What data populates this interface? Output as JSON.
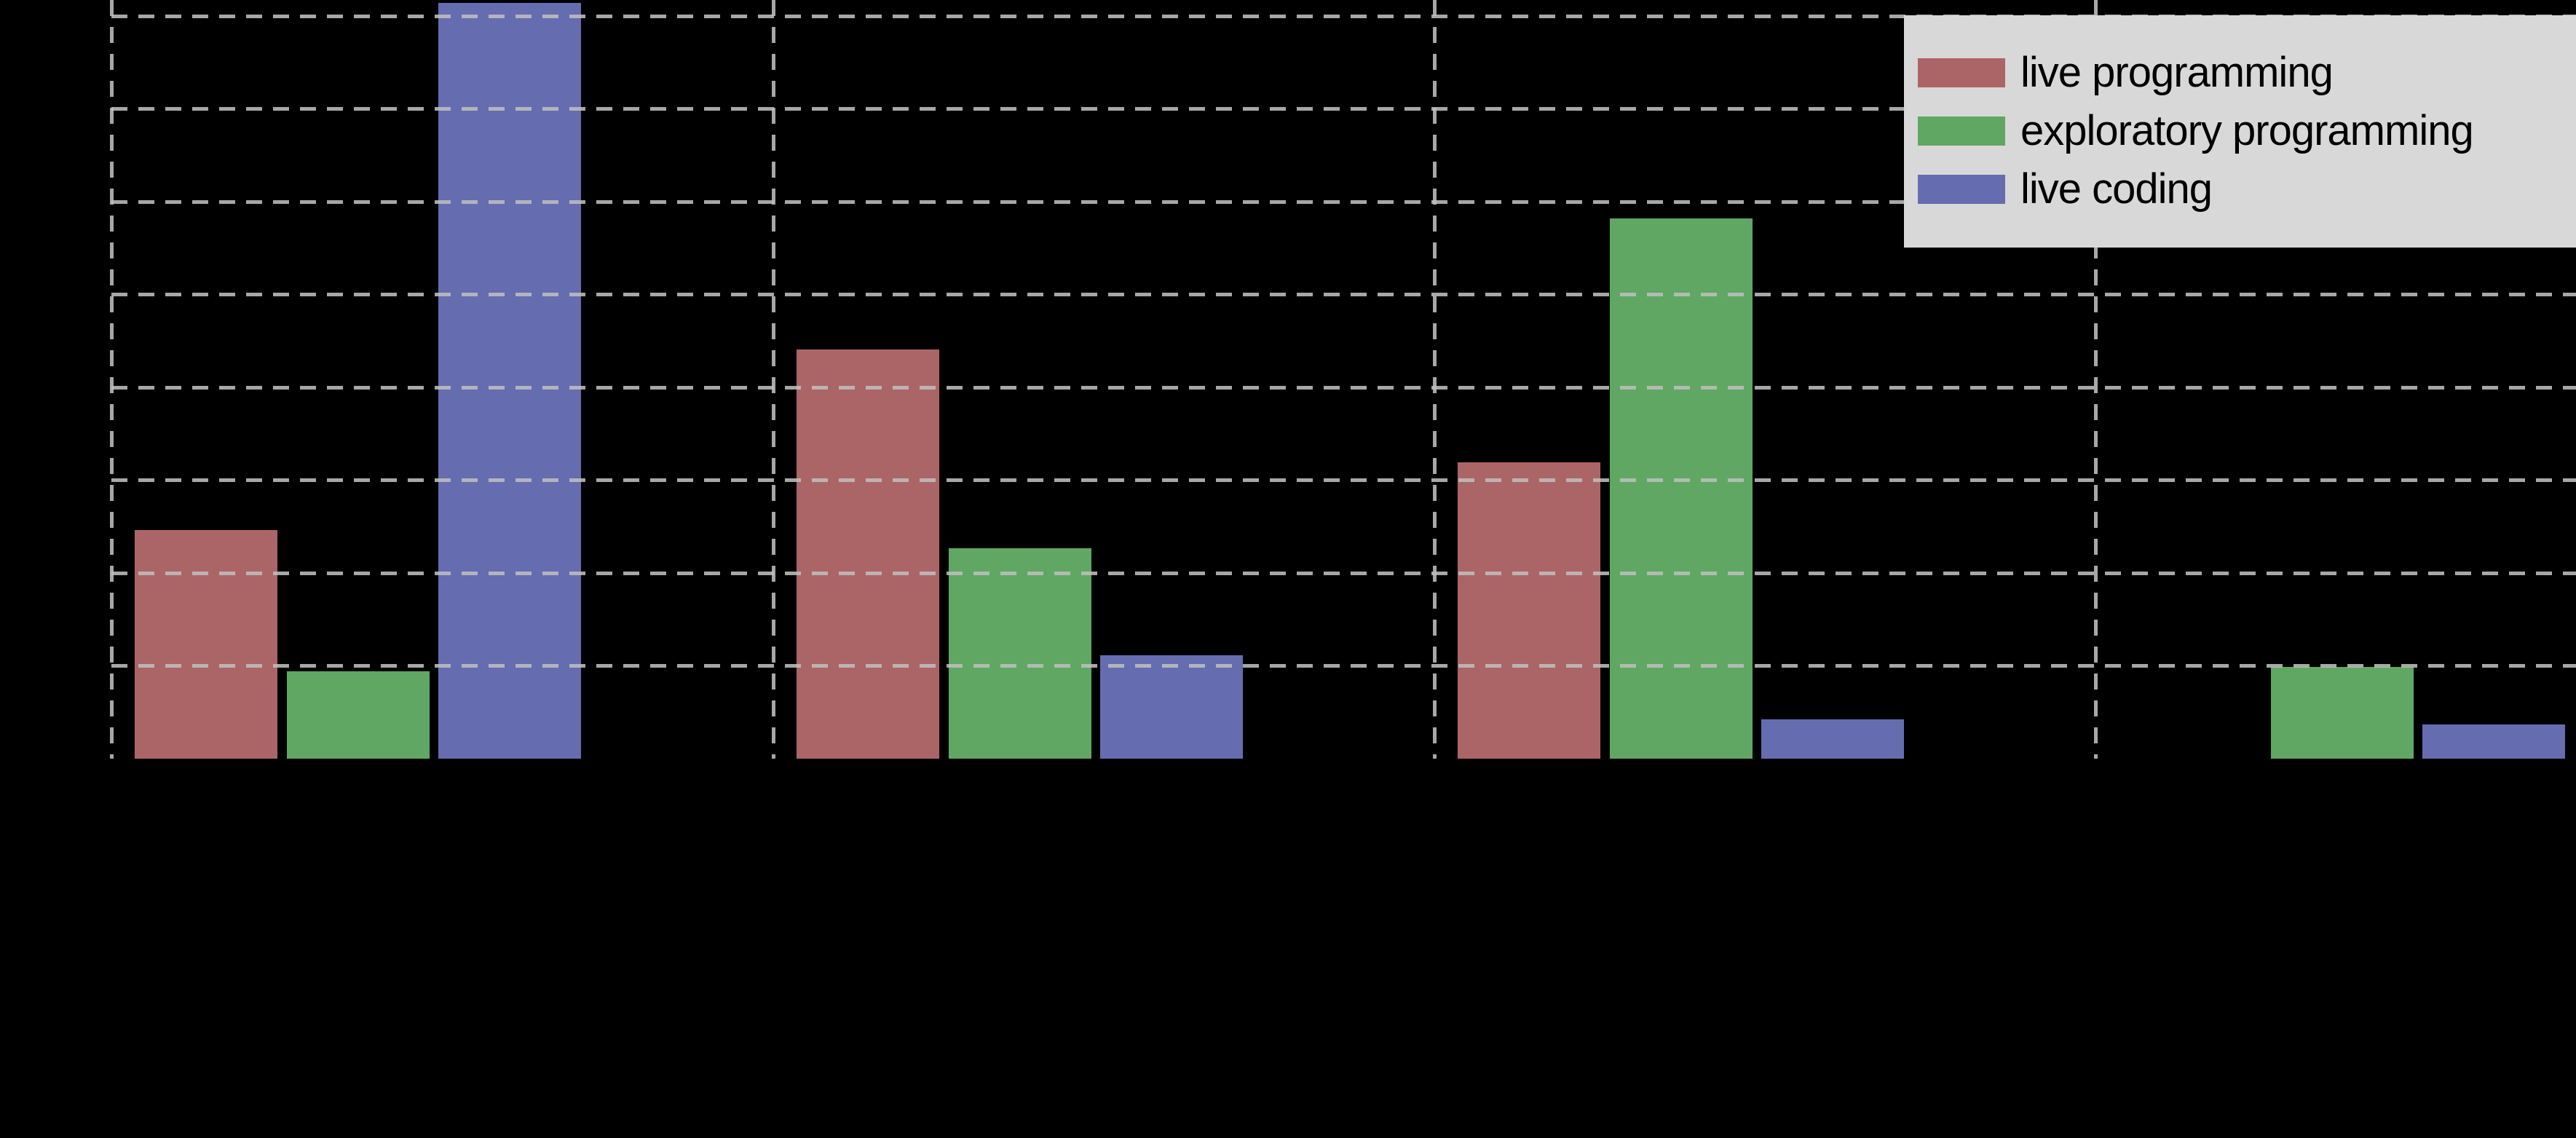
{
  "chart_data": {
    "type": "bar",
    "title": "",
    "categories": [
      "",
      "",
      "",
      ""
    ],
    "series": [
      {
        "name": "live programming",
        "color": "#AC6567",
        "values": [
          24.6,
          44.1,
          31.9,
          0
        ]
      },
      {
        "name": "exploratory programming",
        "color": "#60A763",
        "values": [
          9.4,
          22.7,
          58.2,
          9.9
        ]
      },
      {
        "name": "live coding",
        "color": "#666CB0",
        "values": [
          81.4,
          11.1,
          4.2,
          3.7
        ]
      }
    ],
    "ylim": [
      0,
      81.9
    ],
    "y_gridline_step": 10,
    "grid": "dashed, drawn above bars",
    "x_gridlines_count": 4,
    "legend_position": "upper right",
    "tick_labels_visible": false
  },
  "legend": {
    "items": [
      {
        "label": "live programming",
        "color": "#AC6567"
      },
      {
        "label": "exploratory programming",
        "color": "#60A763"
      },
      {
        "label": "live coding",
        "color": "#666CB0"
      }
    ]
  },
  "colors": {
    "background": "#000000",
    "gridline": "#BEBEBE",
    "legend_background": "#D8D8D8",
    "legend_text": "#000000"
  }
}
